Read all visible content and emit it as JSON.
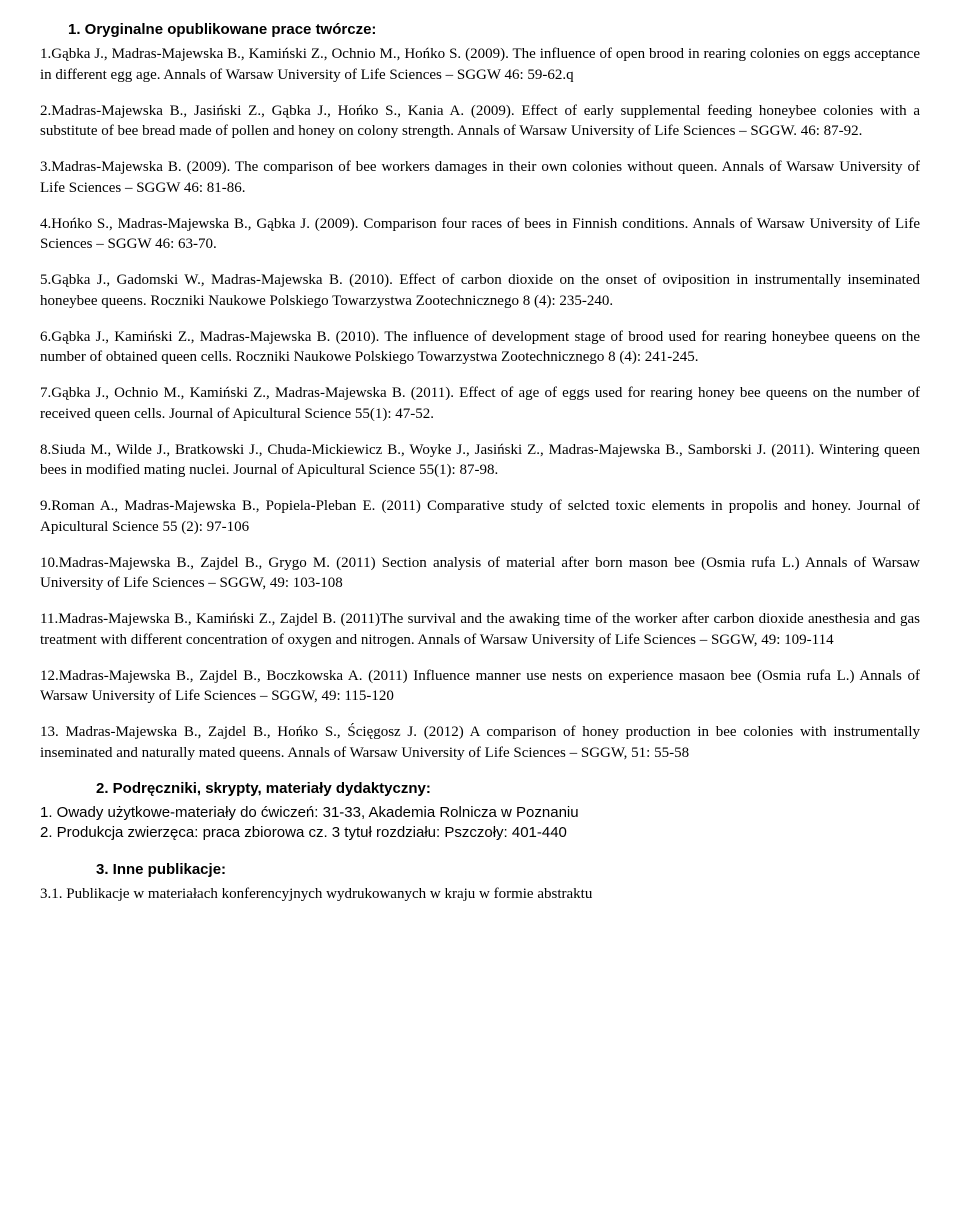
{
  "section1": {
    "heading": "1.  Oryginalne opublikowane prace twórcze:",
    "items": [
      "1.Gąbka J., Madras-Majewska B., Kamiński Z., Ochnio M., Hońko S. (2009). The influence of open brood in rearing colonies on eggs acceptance in different egg age. Annals of Warsaw University of Life Sciences – SGGW 46: 59-62.q",
      "2.Madras-Majewska B., Jasiński Z., Gąbka J., Hońko S., Kania A. (2009). Effect of early supplemental feeding honeybee colonies with a substitute of bee bread made of pollen and honey on colony strength. Annals of Warsaw University of Life Sciences – SGGW. 46: 87-92.",
      "3.Madras-Majewska B. (2009). The comparison of bee workers damages in their own colonies without queen. Annals of Warsaw University of Life Sciences – SGGW 46: 81-86.",
      "4.Hońko S., Madras-Majewska B., Gąbka J. (2009). Comparison four races of bees in Finnish conditions. Annals of Warsaw University of Life Sciences – SGGW 46: 63-70.",
      "5.Gąbka J., Gadomski W., Madras-Majewska B. (2010). Effect of carbon dioxide on the onset of oviposition in instrumentally inseminated honeybee queens. Roczniki Naukowe Polskiego Towarzystwa Zootechnicznego 8 (4): 235-240.",
      "6.Gąbka J., Kamiński Z., Madras-Majewska B. (2010). The influence of development stage of brood used for rearing honeybee queens on the number of obtained queen cells. Roczniki Naukowe Polskiego Towarzystwa Zootechnicznego 8 (4): 241-245.",
      "7.Gąbka J., Ochnio M., Kamiński Z., Madras-Majewska B. (2011). Effect of age of eggs used for rearing honey bee queens on the number of received queen cells. Journal of Apicultural Science 55(1): 47-52.",
      "8.Siuda M., Wilde J., Bratkowski J., Chuda-Mickiewicz B., Woyke J., Jasiński Z., Madras-Majewska B., Samborski J. (2011). Wintering queen bees in modified mating nuclei. Journal of Apicultural Science 55(1): 87-98.",
      "9.Roman A., Madras-Majewska B., Popiela-Pleban E. (2011) Comparative study of selcted toxic elements in propolis and honey. Journal of Apicultural  Science 55 (2): 97-106",
      "10.Madras-Majewska B., Zajdel B., Grygo M. (2011) Section analysis of material after born mason bee (Osmia rufa L.) Annals of Warsaw University of Life Sciences – SGGW, 49: 103-108",
      "11.Madras-Majewska B., Kamiński Z., Zajdel B. (2011)The survival and the awaking time of the worker after carbon dioxide anesthesia and gas treatment with different concentration of oxygen and nitrogen. Annals of Warsaw University of Life Sciences – SGGW, 49: 109-114",
      "12.Madras-Majewska B., Zajdel B., Boczkowska A. (2011) Influence manner use nests on experience masaon bee (Osmia rufa L.) Annals of Warsaw University of Life Sciences – SGGW, 49: 115-120",
      "13. Madras-Majewska B., Zajdel B., Hońko S., Ścięgosz J. (2012) A comparison of honey production in bee colonies with instrumentally inseminated and naturally mated queens. Annals of Warsaw University of Life Sciences – SGGW, 51: 55-58"
    ]
  },
  "section2": {
    "heading": "2. Podręczniki, skrypty, materiały dydaktyczny:",
    "items": [
      "1. Owady użytkowe-materiały do ćwiczeń: 31-33, Akademia Rolnicza w Poznaniu",
      "2. Produkcja zwierzęca: praca zbiorowa cz. 3 tytuł rozdziału: Pszczoły: 401-440"
    ]
  },
  "section3": {
    "heading": "3. Inne publikacje:",
    "sub": "3.1.  Publikacje w materiałach konferencyjnych wydrukowanych w kraju w formie abstraktu"
  }
}
